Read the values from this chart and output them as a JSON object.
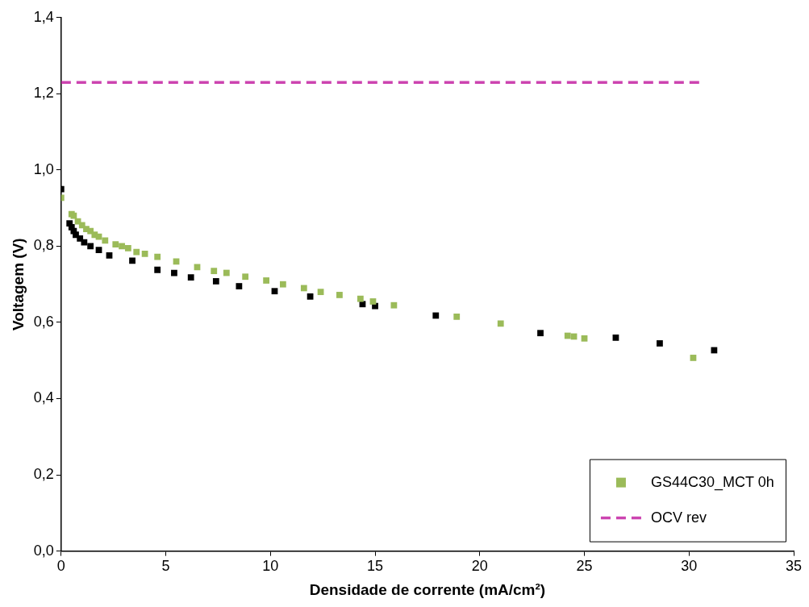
{
  "chart_data": {
    "type": "scatter",
    "xlabel": "Densidade de corrente (mA/cm²)",
    "ylabel": "Voltagem (V)",
    "xlim": [
      0,
      35
    ],
    "xticks": [
      0,
      5,
      10,
      15,
      20,
      25,
      30,
      35
    ],
    "ylim": [
      0,
      1.4
    ],
    "yticks": [
      {
        "value": 0,
        "label": "0,0"
      },
      {
        "value": 0.2,
        "label": "0,2"
      },
      {
        "value": 0.4,
        "label": "0,4"
      },
      {
        "value": 0.6,
        "label": "0,6"
      },
      {
        "value": 0.8,
        "label": "0,8"
      },
      {
        "value": 1.0,
        "label": "1,0"
      },
      {
        "value": 1.2,
        "label": "1,2"
      },
      {
        "value": 1.4,
        "label": "1,4"
      }
    ],
    "grid": false,
    "legend": "bottom right",
    "marker": "square",
    "series": [
      {
        "name": "GS44C30_MCT 0h",
        "color": "#9bbb59",
        "x": [
          0,
          0.5,
          0.6,
          0.8,
          1.0,
          1.2,
          1.4,
          1.6,
          1.8,
          2.1,
          2.6,
          2.9,
          3.2,
          3.6,
          4.0,
          4.6,
          5.5,
          6.5,
          7.3,
          7.9,
          8.8,
          9.8,
          10.6,
          11.6,
          12.4,
          13.3,
          14.3,
          14.9,
          15.9,
          18.9,
          21.0,
          24.2,
          24.5,
          25.0,
          30.2
        ],
        "values": [
          0.927,
          0.884,
          0.88,
          0.865,
          0.855,
          0.845,
          0.84,
          0.83,
          0.825,
          0.815,
          0.805,
          0.8,
          0.795,
          0.785,
          0.78,
          0.772,
          0.76,
          0.745,
          0.735,
          0.73,
          0.72,
          0.71,
          0.7,
          0.69,
          0.68,
          0.672,
          0.662,
          0.655,
          0.645,
          0.615,
          0.597,
          0.565,
          0.563,
          0.558,
          0.507
        ]
      },
      {
        "color": "#000000",
        "x": [
          0,
          0.4,
          0.5,
          0.6,
          0.7,
          0.9,
          1.1,
          1.4,
          1.8,
          2.3,
          3.4,
          4.6,
          5.4,
          6.2,
          7.4,
          8.5,
          10.2,
          11.9,
          14.4,
          15.0,
          17.9,
          22.9,
          26.5,
          28.6,
          31.2
        ],
        "values": [
          0.95,
          0.86,
          0.85,
          0.84,
          0.83,
          0.82,
          0.81,
          0.8,
          0.79,
          0.776,
          0.762,
          0.738,
          0.73,
          0.718,
          0.708,
          0.695,
          0.682,
          0.668,
          0.648,
          0.643,
          0.618,
          0.572,
          0.56,
          0.545,
          0.527
        ]
      },
      {
        "name": "OCV rev",
        "type": "line",
        "color": "#cc44b0",
        "line_style": "dashed",
        "marker": "none",
        "x": [
          0,
          30.5
        ],
        "values": [
          1.23,
          1.23
        ]
      }
    ]
  }
}
